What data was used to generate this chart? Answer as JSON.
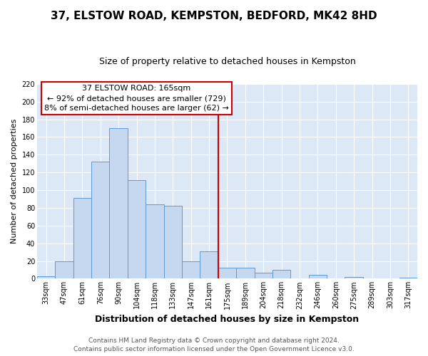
{
  "title": "37, ELSTOW ROAD, KEMPSTON, BEDFORD, MK42 8HD",
  "subtitle": "Size of property relative to detached houses in Kempston",
  "xlabel": "Distribution of detached houses by size in Kempston",
  "ylabel": "Number of detached properties",
  "bar_labels": [
    "33sqm",
    "47sqm",
    "61sqm",
    "76sqm",
    "90sqm",
    "104sqm",
    "118sqm",
    "133sqm",
    "147sqm",
    "161sqm",
    "175sqm",
    "189sqm",
    "204sqm",
    "218sqm",
    "232sqm",
    "246sqm",
    "260sqm",
    "275sqm",
    "289sqm",
    "303sqm",
    "317sqm"
  ],
  "bar_heights": [
    3,
    20,
    91,
    132,
    170,
    111,
    84,
    82,
    20,
    31,
    12,
    12,
    7,
    10,
    0,
    4,
    0,
    2,
    0,
    0,
    1
  ],
  "bar_color": "#c5d8ef",
  "bar_edge_color": "#5b9bd5",
  "ylim": [
    0,
    220
  ],
  "yticks": [
    0,
    20,
    40,
    60,
    80,
    100,
    120,
    140,
    160,
    180,
    200,
    220
  ],
  "vline_x": 9.5,
  "vline_color": "#cc0000",
  "annotation_title": "37 ELSTOW ROAD: 165sqm",
  "annotation_line1": "← 92% of detached houses are smaller (729)",
  "annotation_line2": "8% of semi-detached houses are larger (62) →",
  "annotation_box_facecolor": "#ffffff",
  "annotation_box_edgecolor": "#cc0000",
  "footer1": "Contains HM Land Registry data © Crown copyright and database right 2024.",
  "footer2": "Contains public sector information licensed under the Open Government Licence v3.0.",
  "fig_facecolor": "#ffffff",
  "plot_facecolor": "#dce8f5",
  "grid_color": "#ffffff",
  "title_fontsize": 11,
  "subtitle_fontsize": 9,
  "ylabel_fontsize": 8,
  "xlabel_fontsize": 9,
  "tick_fontsize": 7,
  "footer_fontsize": 6.5,
  "ann_fontsize": 8
}
